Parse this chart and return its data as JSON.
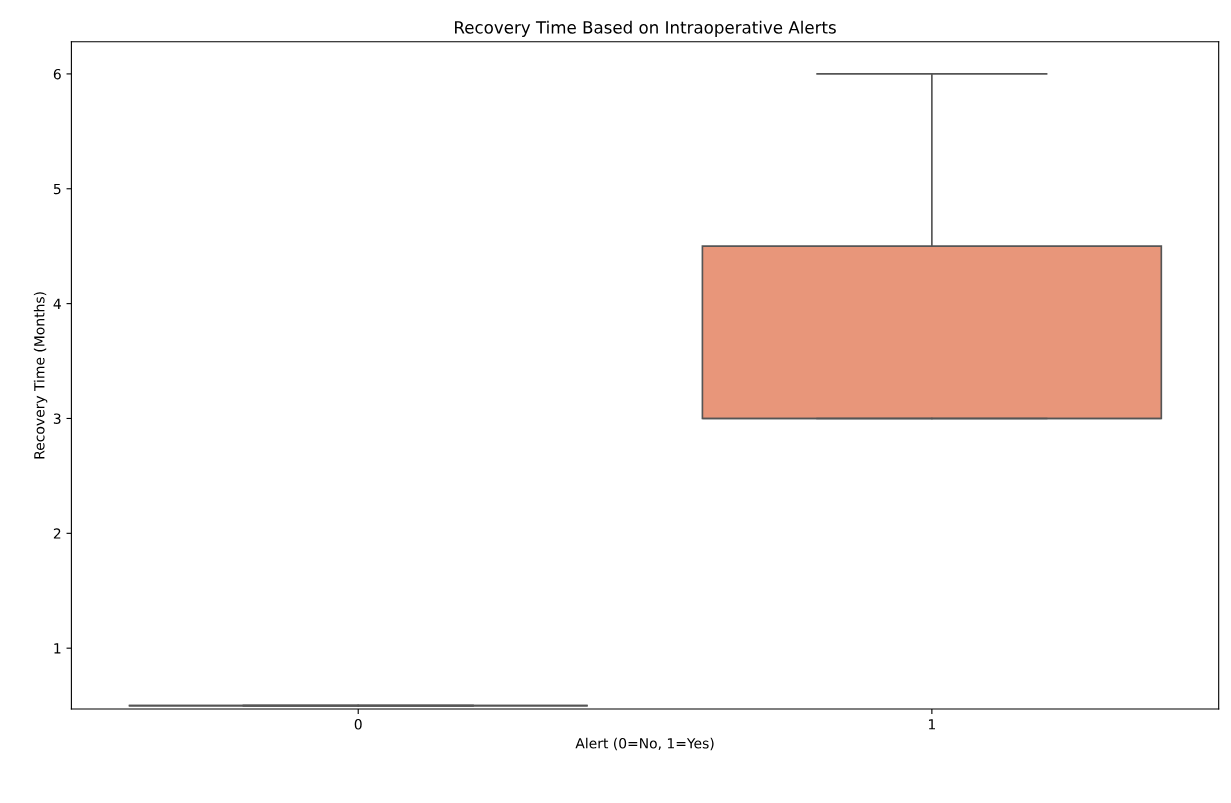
{
  "chart_data": {
    "type": "box",
    "title": "Recovery Time Based on Intraoperative Alerts",
    "xlabel": "Alert (0=No, 1=Yes)",
    "ylabel": "Recovery Time (Months)",
    "categories": [
      "0",
      "1"
    ],
    "boxes": [
      {
        "low": 0.5,
        "q1": 0.5,
        "median": 0.5,
        "q3": 0.5,
        "high": 0.5
      },
      {
        "low": 3,
        "q1": 3,
        "median": 3,
        "q3": 4.5,
        "high": 6
      }
    ],
    "colors": [
      "#555555",
      "#e8967a"
    ],
    "ylim": [
      0.47,
      6.28
    ],
    "yticks": [
      1,
      2,
      3,
      4,
      5,
      6
    ],
    "grid": false
  }
}
